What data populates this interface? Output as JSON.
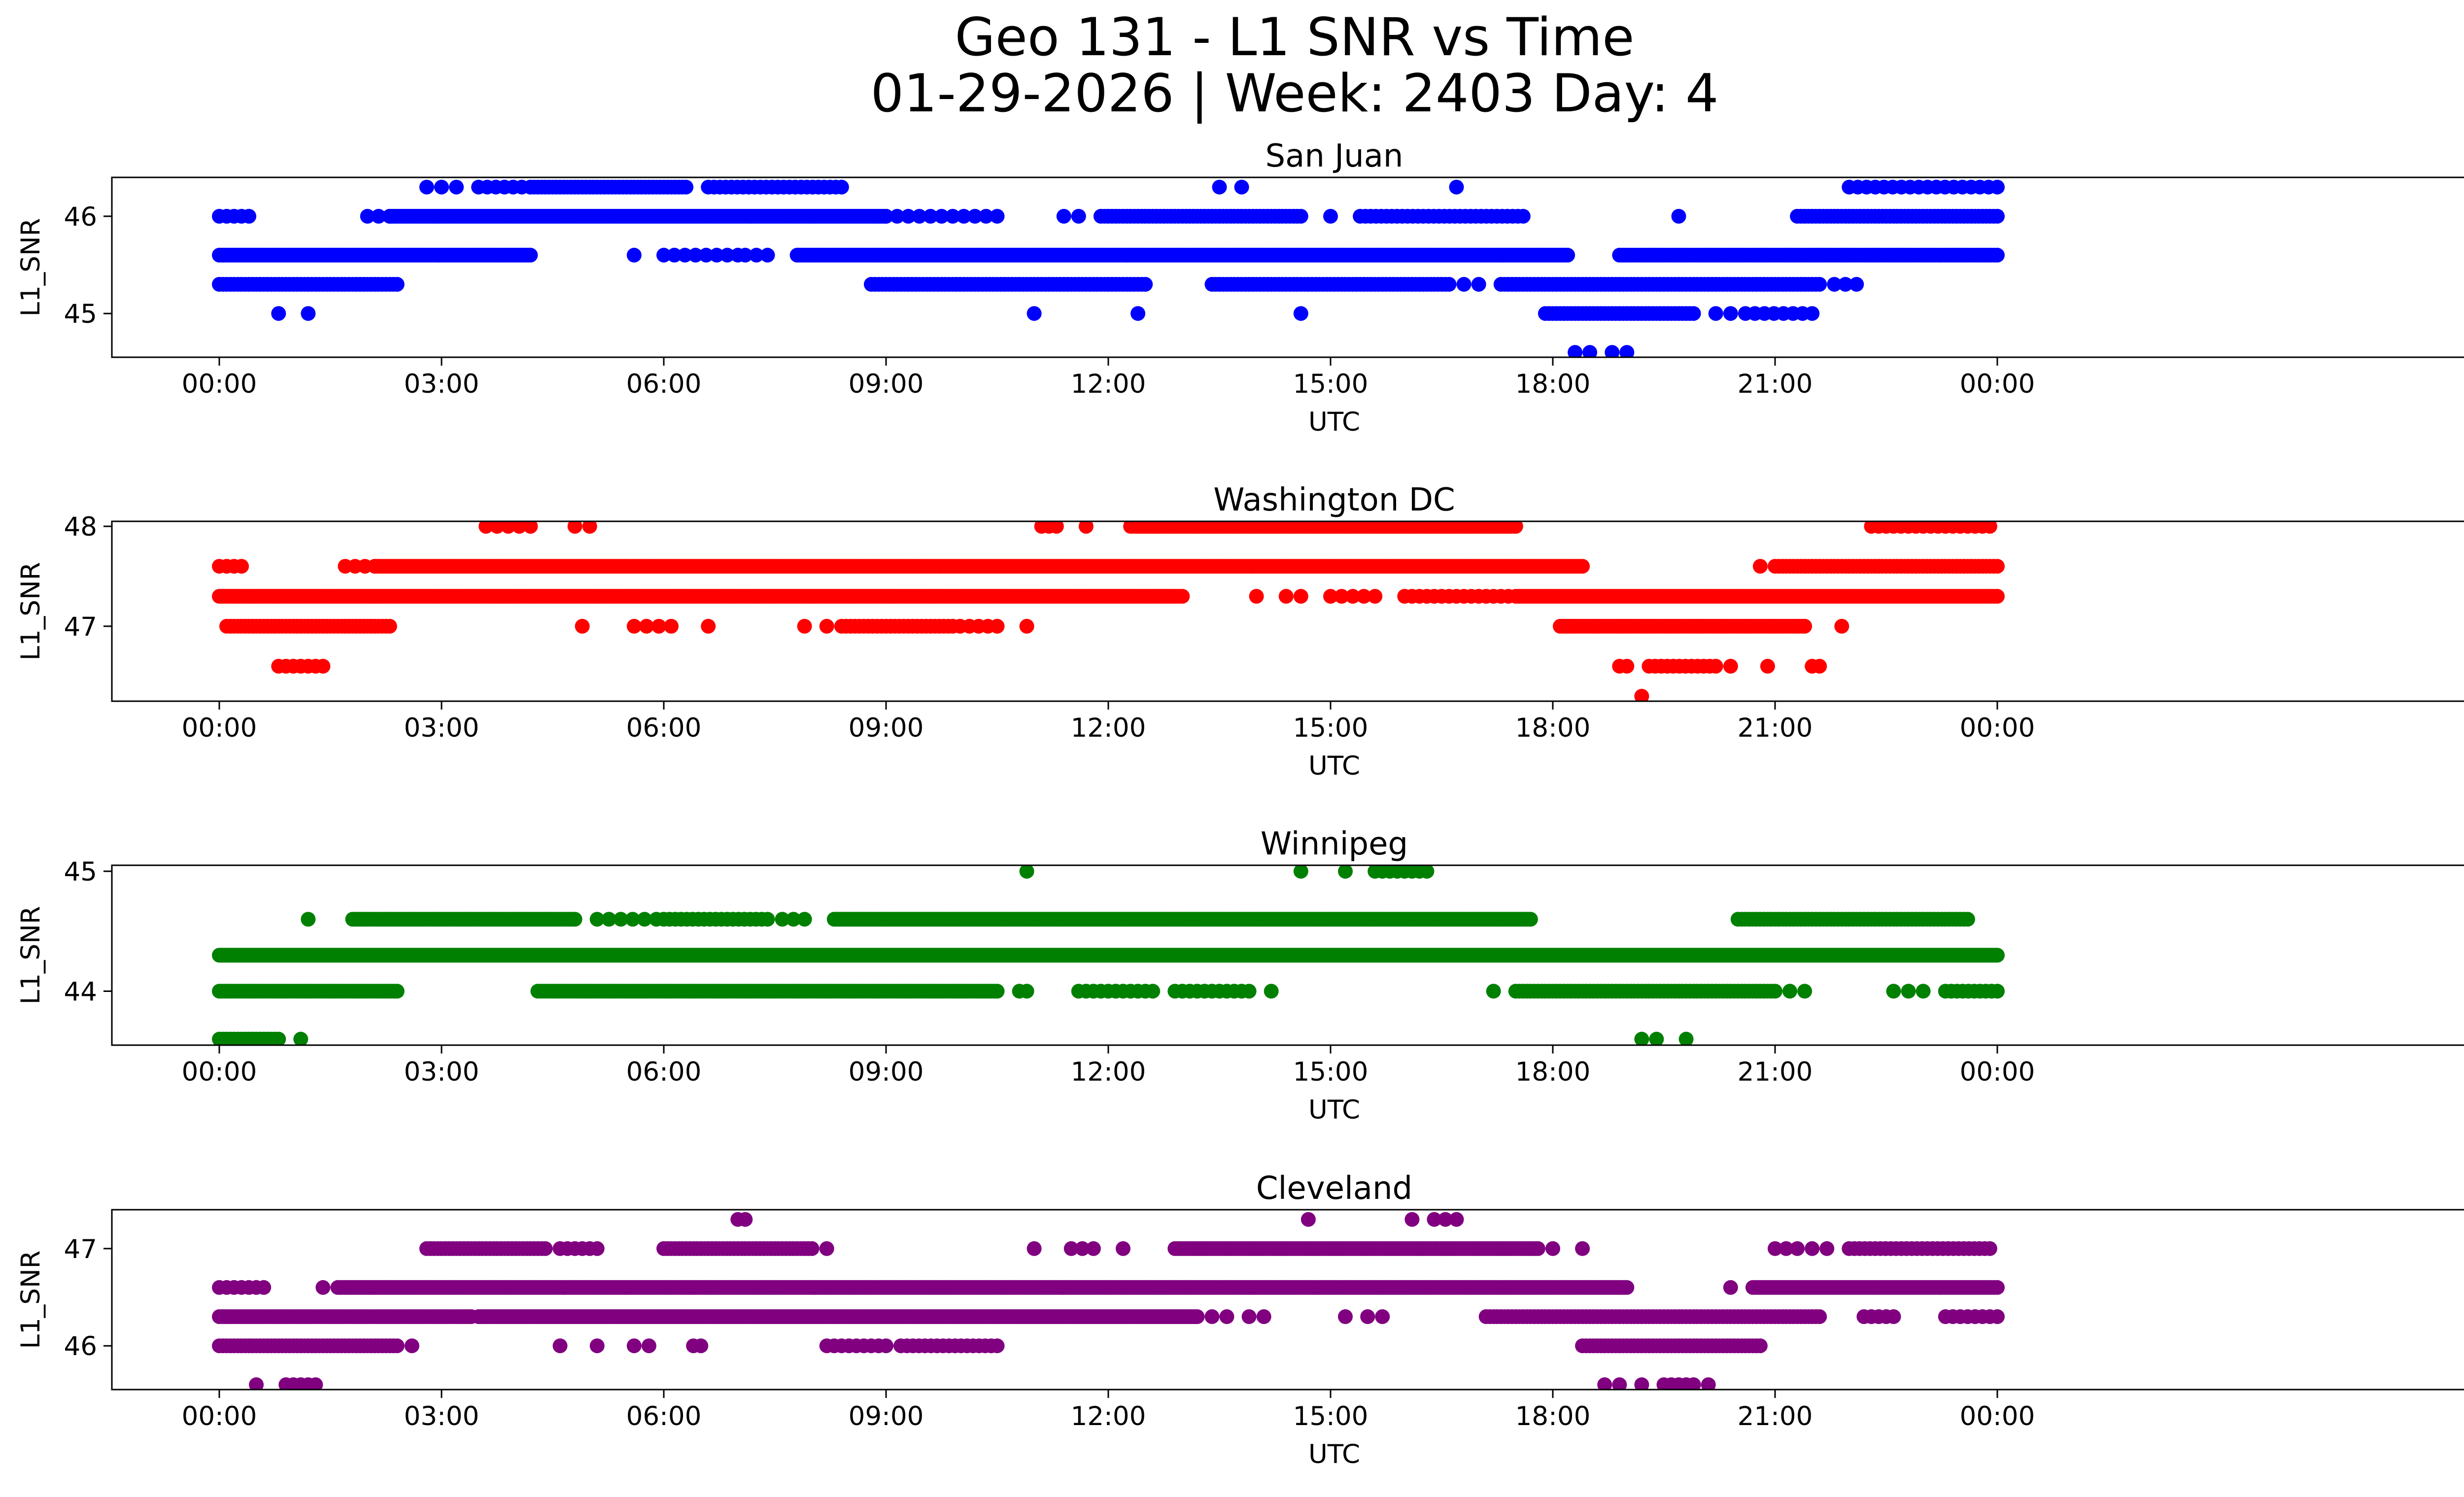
{
  "chart_data": {
    "type": "scatter",
    "title_line1": "Geo 131 - L1 SNR vs Time",
    "title_line2": "01-29-2026 | Week: 2403 Day: 4",
    "xlabel": "UTC",
    "ylabel": "L1_SNR",
    "x_unit": "hours",
    "xlim": [
      -1.45,
      31.55
    ],
    "xticks": [
      0,
      3,
      6,
      9,
      12,
      15,
      18,
      21,
      24
    ],
    "xtick_labels": [
      "00:00",
      "03:00",
      "06:00",
      "09:00",
      "12:00",
      "15:00",
      "18:00",
      "21:00",
      "00:00"
    ],
    "panels": [
      {
        "name": "San Juan",
        "color": "#0000ff",
        "ylim": [
          44.55,
          46.4
        ],
        "yticks": [
          45,
          46
        ],
        "ytick_labels": [
          "45",
          "46"
        ],
        "levels": [
          {
            "y": 46.3,
            "segments": [
              [
                2.8,
                3.2,
                0.18
              ],
              [
                3.5,
                4.2,
                0.12
              ],
              [
                4.2,
                6.3,
                0.05
              ],
              [
                6.6,
                8.4,
                0.08
              ],
              [
                13.5,
                13.8,
                0.3
              ],
              [
                16.7,
                16.7,
                0.5
              ],
              [
                22.0,
                24.0,
                0.12
              ]
            ]
          },
          {
            "y": 46.0,
            "segments": [
              [
                0.0,
                0.4,
                0.1
              ],
              [
                2.0,
                2.3,
                0.15
              ],
              [
                2.3,
                9.0,
                0.03
              ],
              [
                9.0,
                10.5,
                0.15
              ],
              [
                11.4,
                11.6,
                0.2
              ],
              [
                11.9,
                14.6,
                0.05
              ],
              [
                15.0,
                15.0,
                0.5
              ],
              [
                15.4,
                17.6,
                0.07
              ],
              [
                19.7,
                19.7,
                0.5
              ],
              [
                21.3,
                24.0,
                0.05
              ]
            ]
          },
          {
            "y": 45.6,
            "segments": [
              [
                0.0,
                4.2,
                0.03
              ],
              [
                5.6,
                5.6,
                0.5
              ],
              [
                6.0,
                7.0,
                0.15
              ],
              [
                7.1,
                7.4,
                0.2
              ],
              [
                7.8,
                18.2,
                0.03
              ],
              [
                18.9,
                24.0,
                0.04
              ]
            ]
          },
          {
            "y": 45.3,
            "segments": [
              [
                0.0,
                2.4,
                0.05
              ],
              [
                8.8,
                12.5,
                0.05
              ],
              [
                13.4,
                16.6,
                0.05
              ],
              [
                16.8,
                17.0,
                0.2
              ],
              [
                17.3,
                21.6,
                0.05
              ],
              [
                21.8,
                22.1,
                0.2
              ]
            ]
          },
          {
            "y": 45.0,
            "segments": [
              [
                0.8,
                0.8,
                0.5
              ],
              [
                1.2,
                1.2,
                0.5
              ],
              [
                11.0,
                11.0,
                0.5
              ],
              [
                12.4,
                12.4,
                0.5
              ],
              [
                14.6,
                14.6,
                0.5
              ],
              [
                17.9,
                19.9,
                0.05
              ],
              [
                20.2,
                20.4,
                0.2
              ],
              [
                20.6,
                21.5,
                0.12
              ]
            ]
          },
          {
            "y": 44.6,
            "segments": [
              [
                18.3,
                18.5,
                0.2
              ],
              [
                18.8,
                19.0,
                0.2
              ]
            ]
          }
        ]
      },
      {
        "name": "Washington DC",
        "color": "#ff0000",
        "ylim": [
          46.25,
          48.05
        ],
        "yticks": [
          47,
          48
        ],
        "ytick_labels": [
          "47",
          "48"
        ],
        "levels": [
          {
            "y": 48.0,
            "segments": [
              [
                3.6,
                4.2,
                0.15
              ],
              [
                4.8,
                5.0,
                0.2
              ],
              [
                11.1,
                11.3,
                0.12
              ],
              [
                11.7,
                11.7,
                0.5
              ],
              [
                12.3,
                17.5,
                0.03
              ],
              [
                22.3,
                23.9,
                0.1
              ]
            ]
          },
          {
            "y": 47.6,
            "segments": [
              [
                0.0,
                0.3,
                0.1
              ],
              [
                1.7,
                2.1,
                0.15
              ],
              [
                2.1,
                18.4,
                0.04
              ],
              [
                20.8,
                20.8,
                0.5
              ],
              [
                21.0,
                24.0,
                0.05
              ]
            ]
          },
          {
            "y": 47.3,
            "segments": [
              [
                0.0,
                13.0,
                0.03
              ],
              [
                14.0,
                14.0,
                0.5
              ],
              [
                14.4,
                14.6,
                0.2
              ],
              [
                15.0,
                15.6,
                0.15
              ],
              [
                16.0,
                17.4,
                0.1
              ],
              [
                17.5,
                24.0,
                0.04
              ]
            ]
          },
          {
            "y": 47.0,
            "segments": [
              [
                0.1,
                2.3,
                0.05
              ],
              [
                4.9,
                4.9,
                0.5
              ],
              [
                5.6,
                6.1,
                0.2
              ],
              [
                6.6,
                6.6,
                0.5
              ],
              [
                7.9,
                8.2,
                0.2
              ],
              [
                8.4,
                9.9,
                0.06
              ],
              [
                10.0,
                10.5,
                0.12
              ],
              [
                10.9,
                10.9,
                0.5
              ],
              [
                18.1,
                21.4,
                0.04
              ],
              [
                21.9,
                21.9,
                0.5
              ]
            ]
          },
          {
            "y": 46.6,
            "segments": [
              [
                0.8,
                1.4,
                0.1
              ],
              [
                18.9,
                19.0,
                0.1
              ],
              [
                19.3,
                20.2,
                0.08
              ],
              [
                20.4,
                20.4,
                0.5
              ],
              [
                20.9,
                20.9,
                0.5
              ],
              [
                21.5,
                21.6,
                0.1
              ]
            ]
          },
          {
            "y": 46.3,
            "segments": [
              [
                19.2,
                19.2,
                0.5
              ]
            ]
          }
        ]
      },
      {
        "name": "Winnipeg",
        "color": "#008000",
        "ylim": [
          43.55,
          45.05
        ],
        "yticks": [
          44,
          45
        ],
        "ytick_labels": [
          "44",
          "45"
        ],
        "levels": [
          {
            "y": 45.0,
            "segments": [
              [
                10.9,
                10.9,
                0.5
              ],
              [
                14.6,
                14.6,
                0.5
              ],
              [
                15.2,
                15.2,
                0.5
              ],
              [
                15.6,
                16.3,
                0.1
              ]
            ]
          },
          {
            "y": 44.6,
            "segments": [
              [
                1.2,
                1.2,
                0.5
              ],
              [
                1.8,
                4.8,
                0.04
              ],
              [
                5.1,
                5.9,
                0.15
              ],
              [
                6.0,
                7.4,
                0.08
              ],
              [
                7.6,
                7.9,
                0.2
              ],
              [
                8.3,
                17.7,
                0.03
              ],
              [
                20.5,
                23.6,
                0.05
              ]
            ]
          },
          {
            "y": 44.3,
            "segments": [
              [
                0.0,
                24.0,
                0.02
              ]
            ]
          },
          {
            "y": 44.0,
            "segments": [
              [
                0.0,
                2.4,
                0.04
              ],
              [
                4.3,
                10.5,
                0.04
              ],
              [
                10.8,
                10.9,
                0.1
              ],
              [
                11.6,
                12.6,
                0.1
              ],
              [
                12.9,
                13.9,
                0.1
              ],
              [
                14.2,
                14.2,
                0.5
              ],
              [
                17.2,
                17.2,
                0.5
              ],
              [
                17.5,
                21.0,
                0.05
              ],
              [
                21.2,
                21.4,
                0.2
              ],
              [
                22.6,
                22.6,
                0.5
              ],
              [
                22.8,
                23.0,
                0.2
              ],
              [
                23.3,
                24.0,
                0.08
              ]
            ]
          },
          {
            "y": 43.6,
            "segments": [
              [
                0.0,
                0.8,
                0.05
              ],
              [
                1.1,
                1.1,
                0.5
              ],
              [
                19.2,
                19.4,
                0.2
              ],
              [
                19.8,
                19.8,
                0.5
              ]
            ]
          }
        ]
      },
      {
        "name": "Cleveland",
        "color": "#800080",
        "ylim": [
          45.55,
          47.4
        ],
        "yticks": [
          46,
          47
        ],
        "ytick_labels": [
          "46",
          "47"
        ],
        "levels": [
          {
            "y": 47.3,
            "segments": [
              [
                7.0,
                7.1,
                0.1
              ],
              [
                14.7,
                14.7,
                0.5
              ],
              [
                16.1,
                16.1,
                0.5
              ],
              [
                16.4,
                16.7,
                0.15
              ]
            ]
          },
          {
            "y": 47.0,
            "segments": [
              [
                2.8,
                4.4,
                0.05
              ],
              [
                4.6,
                5.1,
                0.1
              ],
              [
                6.0,
                8.0,
                0.05
              ],
              [
                8.2,
                8.2,
                0.5
              ],
              [
                11.0,
                11.0,
                0.5
              ],
              [
                11.5,
                11.8,
                0.15
              ],
              [
                12.2,
                12.2,
                0.5
              ],
              [
                12.9,
                17.8,
                0.04
              ],
              [
                18.0,
                18.0,
                0.5
              ],
              [
                18.4,
                18.4,
                0.5
              ],
              [
                21.0,
                21.3,
                0.15
              ],
              [
                21.5,
                21.7,
                0.2
              ],
              [
                22.0,
                23.9,
                0.07
              ]
            ]
          },
          {
            "y": 46.6,
            "segments": [
              [
                0.0,
                0.6,
                0.1
              ],
              [
                1.4,
                1.4,
                0.5
              ],
              [
                1.6,
                19.0,
                0.03
              ],
              [
                20.4,
                20.4,
                0.5
              ],
              [
                20.7,
                24.0,
                0.04
              ]
            ]
          },
          {
            "y": 46.3,
            "segments": [
              [
                0.0,
                3.4,
                0.04
              ],
              [
                3.5,
                13.2,
                0.03
              ],
              [
                13.4,
                13.6,
                0.2
              ],
              [
                13.9,
                14.1,
                0.2
              ],
              [
                15.2,
                15.2,
                0.5
              ],
              [
                15.5,
                15.7,
                0.2
              ],
              [
                17.1,
                21.6,
                0.05
              ],
              [
                22.2,
                22.6,
                0.1
              ],
              [
                23.3,
                24.0,
                0.1
              ]
            ]
          },
          {
            "y": 46.0,
            "segments": [
              [
                0.0,
                2.4,
                0.05
              ],
              [
                2.6,
                2.6,
                0.5
              ],
              [
                4.6,
                4.6,
                0.5
              ],
              [
                5.1,
                5.1,
                0.5
              ],
              [
                5.6,
                5.8,
                0.2
              ],
              [
                6.4,
                6.5,
                0.1
              ],
              [
                8.2,
                9.0,
                0.1
              ],
              [
                9.2,
                10.5,
                0.08
              ],
              [
                18.4,
                20.8,
                0.05
              ]
            ]
          },
          {
            "y": 45.6,
            "segments": [
              [
                0.5,
                0.5,
                0.5
              ],
              [
                0.9,
                1.3,
                0.1
              ],
              [
                18.7,
                18.9,
                0.2
              ],
              [
                19.2,
                19.2,
                0.5
              ],
              [
                19.5,
                19.9,
                0.1
              ],
              [
                20.1,
                20.1,
                0.5
              ]
            ]
          }
        ]
      }
    ]
  }
}
